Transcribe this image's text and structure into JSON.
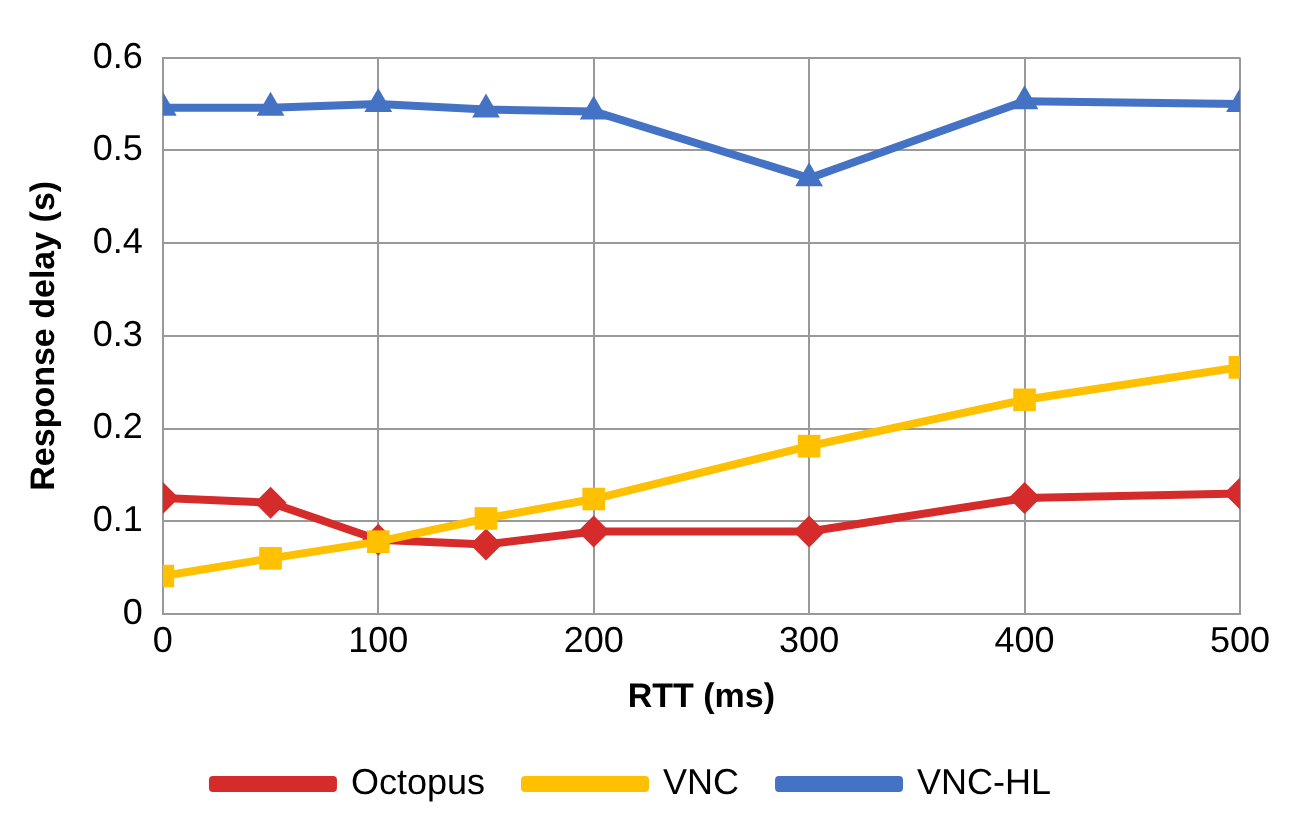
{
  "chart_data": {
    "type": "line",
    "xlabel": "RTT (ms)",
    "ylabel": "Response delay (s)",
    "x": [
      0,
      50,
      100,
      150,
      200,
      300,
      400,
      500
    ],
    "series": [
      {
        "name": "Octopus",
        "color": "#d62b2b",
        "marker": "diamond",
        "values": [
          0.125,
          0.12,
          0.08,
          0.075,
          0.089,
          0.089,
          0.125,
          0.13
        ]
      },
      {
        "name": "VNC",
        "color": "#ffc000",
        "marker": "square",
        "values": [
          0.041,
          0.06,
          0.078,
          0.103,
          0.124,
          0.181,
          0.231,
          0.266
        ]
      },
      {
        "name": "VNC-HL",
        "color": "#4472c4",
        "marker": "triangle",
        "values": [
          0.546,
          0.546,
          0.55,
          0.544,
          0.542,
          0.47,
          0.553,
          0.55
        ]
      }
    ],
    "xlim": [
      0,
      500
    ],
    "xticks": [
      0,
      100,
      200,
      300,
      400,
      500
    ],
    "ylim": [
      0,
      0.6
    ],
    "yticks": [
      0,
      0.1,
      0.2,
      0.3,
      0.4,
      0.5,
      0.6
    ],
    "grid": true,
    "legend": "bottom",
    "line_style": "solid"
  }
}
